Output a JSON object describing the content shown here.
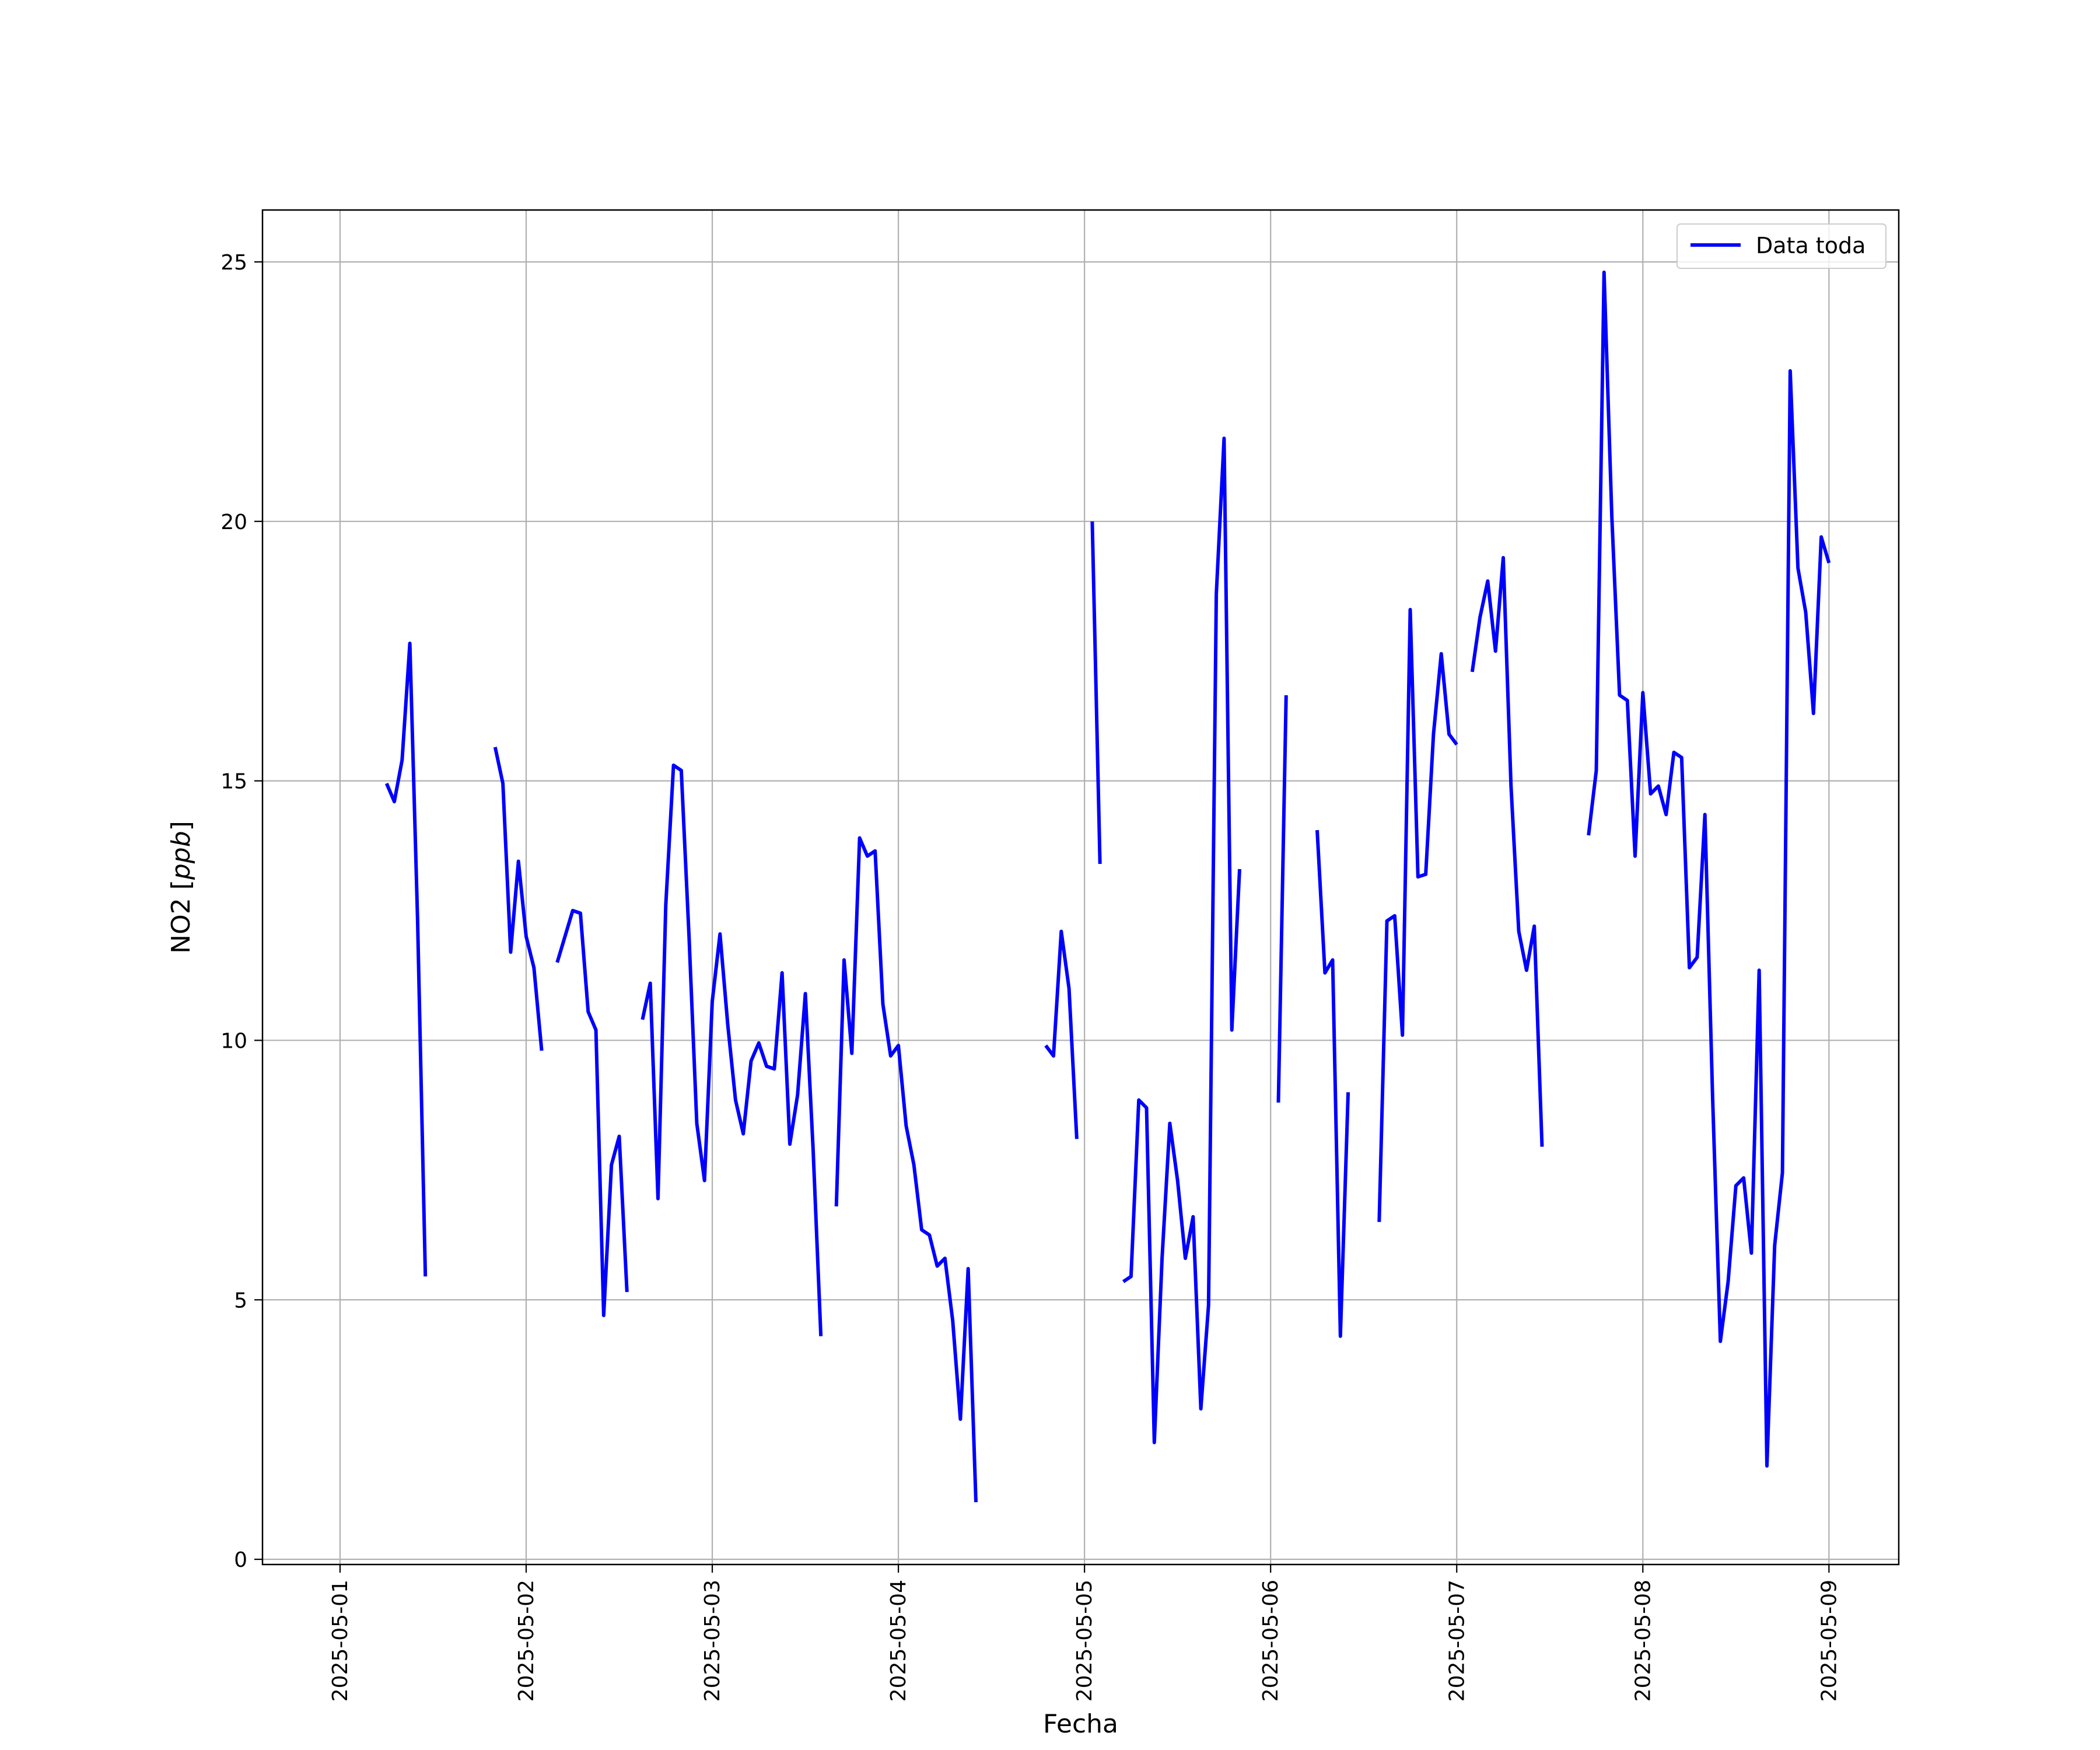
{
  "chart_data": {
    "type": "line",
    "xlabel": "Fecha",
    "ylabel_prefix": "NO2 [",
    "ylabel_unit": "ppb",
    "ylabel_suffix": "]",
    "x_ticks": [
      "2025-05-01",
      "2025-05-02",
      "2025-05-03",
      "2025-05-04",
      "2025-05-05",
      "2025-05-06",
      "2025-05-07",
      "2025-05-08",
      "2025-05-09"
    ],
    "y_ticks": [
      "0",
      "5",
      "10",
      "15",
      "20",
      "25"
    ],
    "xlim": [
      "2025-04-30 14:00",
      "2025-05-09 09:00"
    ],
    "ylim": [
      -0.1,
      26
    ],
    "grid": true,
    "legend": "top-right",
    "colors": {
      "line": "#0000ff",
      "grid": "#b0b0b0"
    },
    "series": [
      {
        "name": "Data toda",
        "segments": [
          [
            [
              "2025-05-01 06:00",
              14.95
            ],
            [
              "2025-05-01 07:00",
              14.6
            ],
            [
              "2025-05-01 08:00",
              15.4
            ],
            [
              "2025-05-01 09:00",
              17.65
            ],
            [
              "2025-05-01 10:00",
              12.3
            ],
            [
              "2025-05-01 11:00",
              5.45
            ]
          ],
          [
            [
              "2025-05-01 20:00",
              15.65
            ],
            [
              "2025-05-01 21:00",
              14.95
            ],
            [
              "2025-05-01 22:00",
              11.7
            ],
            [
              "2025-05-01 23:00",
              13.45
            ],
            [
              "2025-05-02 00:00",
              12.0
            ],
            [
              "2025-05-02 01:00",
              11.4
            ],
            [
              "2025-05-02 02:00",
              9.8
            ]
          ],
          [
            [
              "2025-05-02 04:00",
              11.5
            ],
            [
              "2025-05-02 05:00",
              12.0
            ],
            [
              "2025-05-02 06:00",
              12.5
            ],
            [
              "2025-05-02 07:00",
              12.45
            ],
            [
              "2025-05-02 08:00",
              10.55
            ],
            [
              "2025-05-02 09:00",
              10.2
            ],
            [
              "2025-05-02 10:00",
              4.7
            ],
            [
              "2025-05-02 11:00",
              7.6
            ],
            [
              "2025-05-02 12:00",
              8.15
            ],
            [
              "2025-05-02 13:00",
              5.15
            ]
          ],
          [
            [
              "2025-05-02 15:00",
              10.4
            ],
            [
              "2025-05-02 16:00",
              11.1
            ],
            [
              "2025-05-02 17:00",
              6.95
            ],
            [
              "2025-05-02 18:00",
              12.6
            ],
            [
              "2025-05-02 19:00",
              15.3
            ],
            [
              "2025-05-02 20:00",
              15.2
            ],
            [
              "2025-05-02 21:00",
              12.0
            ],
            [
              "2025-05-02 22:00",
              8.4
            ],
            [
              "2025-05-02 23:00",
              7.3
            ],
            [
              "2025-05-03 00:00",
              10.75
            ],
            [
              "2025-05-03 01:00",
              12.05
            ],
            [
              "2025-05-03 02:00",
              10.3
            ],
            [
              "2025-05-03 03:00",
              8.85
            ],
            [
              "2025-05-03 04:00",
              8.2
            ],
            [
              "2025-05-03 05:00",
              9.6
            ],
            [
              "2025-05-03 06:00",
              9.95
            ],
            [
              "2025-05-03 07:00",
              9.5
            ],
            [
              "2025-05-03 08:00",
              9.45
            ],
            [
              "2025-05-03 09:00",
              11.3
            ],
            [
              "2025-05-03 10:00",
              8.0
            ],
            [
              "2025-05-03 11:00",
              8.95
            ],
            [
              "2025-05-03 12:00",
              10.9
            ],
            [
              "2025-05-03 13:00",
              7.9
            ],
            [
              "2025-05-03 14:00",
              4.3
            ]
          ],
          [
            [
              "2025-05-03 16:00",
              6.8
            ],
            [
              "2025-05-03 17:00",
              11.55
            ],
            [
              "2025-05-03 18:00",
              9.75
            ],
            [
              "2025-05-03 19:00",
              13.9
            ],
            [
              "2025-05-03 20:00",
              13.55
            ],
            [
              "2025-05-03 21:00",
              13.65
            ],
            [
              "2025-05-03 22:00",
              10.7
            ],
            [
              "2025-05-03 23:00",
              9.7
            ],
            [
              "2025-05-04 00:00",
              9.9
            ],
            [
              "2025-05-04 01:00",
              8.35
            ],
            [
              "2025-05-04 02:00",
              7.6
            ],
            [
              "2025-05-04 03:00",
              6.35
            ],
            [
              "2025-05-04 04:00",
              6.25
            ],
            [
              "2025-05-04 05:00",
              5.65
            ],
            [
              "2025-05-04 06:00",
              5.8
            ],
            [
              "2025-05-04 07:00",
              4.6
            ],
            [
              "2025-05-04 08:00",
              2.7
            ],
            [
              "2025-05-04 09:00",
              5.6
            ],
            [
              "2025-05-04 10:00",
              1.1
            ]
          ],
          [
            [
              "2025-05-04 19:00",
              9.9
            ],
            [
              "2025-05-04 20:00",
              9.7
            ],
            [
              "2025-05-04 21:00",
              12.1
            ],
            [
              "2025-05-04 22:00",
              11.0
            ],
            [
              "2025-05-04 23:00",
              8.1
            ]
          ],
          [
            [
              "2025-05-05 01:00",
              20.0
            ],
            [
              "2025-05-05 02:00",
              13.4
            ]
          ],
          [
            [
              "2025-05-05 05:00",
              5.35
            ],
            [
              "2025-05-05 06:00",
              5.45
            ],
            [
              "2025-05-05 07:00",
              8.85
            ],
            [
              "2025-05-05 08:00",
              8.7
            ],
            [
              "2025-05-05 09:00",
              2.25
            ],
            [
              "2025-05-05 10:00",
              5.8
            ],
            [
              "2025-05-05 11:00",
              8.4
            ],
            [
              "2025-05-05 12:00",
              7.3
            ],
            [
              "2025-05-05 13:00",
              5.8
            ],
            [
              "2025-05-05 14:00",
              6.6
            ],
            [
              "2025-05-05 15:00",
              2.9
            ],
            [
              "2025-05-05 16:00",
              4.9
            ],
            [
              "2025-05-05 17:00",
              18.6
            ],
            [
              "2025-05-05 18:00",
              21.6
            ],
            [
              "2025-05-05 19:00",
              10.2
            ],
            [
              "2025-05-05 20:00",
              13.3
            ]
          ],
          [
            [
              "2025-05-06 01:00",
              8.8
            ],
            [
              "2025-05-06 02:00",
              16.65
            ]
          ],
          [
            [
              "2025-05-06 06:00",
              14.05
            ],
            [
              "2025-05-06 07:00",
              11.3
            ],
            [
              "2025-05-06 08:00",
              11.55
            ],
            [
              "2025-05-06 09:00",
              4.3
            ],
            [
              "2025-05-06 10:00",
              9.0
            ]
          ],
          [
            [
              "2025-05-06 14:00",
              6.5
            ],
            [
              "2025-05-06 15:00",
              12.3
            ],
            [
              "2025-05-06 16:00",
              12.4
            ],
            [
              "2025-05-06 17:00",
              10.1
            ],
            [
              "2025-05-06 18:00",
              18.3
            ],
            [
              "2025-05-06 19:00",
              13.15
            ],
            [
              "2025-05-06 20:00",
              13.2
            ],
            [
              "2025-05-06 21:00",
              15.9
            ],
            [
              "2025-05-06 22:00",
              17.45
            ],
            [
              "2025-05-06 23:00",
              15.9
            ],
            [
              "2025-05-07 00:00",
              15.7
            ]
          ],
          [
            [
              "2025-05-07 02:00",
              17.1
            ],
            [
              "2025-05-07 03:00",
              18.15
            ],
            [
              "2025-05-07 04:00",
              18.85
            ],
            [
              "2025-05-07 05:00",
              17.5
            ],
            [
              "2025-05-07 06:00",
              19.3
            ],
            [
              "2025-05-07 07:00",
              14.9
            ],
            [
              "2025-05-07 08:00",
              12.1
            ],
            [
              "2025-05-07 09:00",
              11.35
            ],
            [
              "2025-05-07 10:00",
              12.2
            ],
            [
              "2025-05-07 11:00",
              7.95
            ]
          ],
          [
            [
              "2025-05-07 17:00",
              13.95
            ],
            [
              "2025-05-07 18:00",
              15.2
            ],
            [
              "2025-05-07 19:00",
              24.8
            ],
            [
              "2025-05-07 20:00",
              20.1
            ],
            [
              "2025-05-07 21:00",
              16.65
            ],
            [
              "2025-05-07 22:00",
              16.55
            ],
            [
              "2025-05-07 23:00",
              13.55
            ],
            [
              "2025-05-08 00:00",
              16.7
            ],
            [
              "2025-05-08 01:00",
              14.75
            ],
            [
              "2025-05-08 02:00",
              14.9
            ],
            [
              "2025-05-08 03:00",
              14.35
            ],
            [
              "2025-05-08 04:00",
              15.55
            ],
            [
              "2025-05-08 05:00",
              15.45
            ],
            [
              "2025-05-08 06:00",
              11.4
            ],
            [
              "2025-05-08 07:00",
              11.6
            ],
            [
              "2025-05-08 08:00",
              14.35
            ],
            [
              "2025-05-08 09:00",
              8.9
            ],
            [
              "2025-05-08 10:00",
              4.2
            ],
            [
              "2025-05-08 11:00",
              5.35
            ],
            [
              "2025-05-08 12:00",
              7.2
            ],
            [
              "2025-05-08 13:00",
              7.35
            ],
            [
              "2025-05-08 14:00",
              5.9
            ],
            [
              "2025-05-08 15:00",
              11.35
            ],
            [
              "2025-05-08 16:00",
              1.8
            ],
            [
              "2025-05-08 17:00",
              6.05
            ],
            [
              "2025-05-08 18:00",
              7.45
            ],
            [
              "2025-05-08 19:00",
              22.9
            ],
            [
              "2025-05-08 20:00",
              19.1
            ],
            [
              "2025-05-08 21:00",
              18.25
            ],
            [
              "2025-05-08 22:00",
              16.3
            ],
            [
              "2025-05-08 23:00",
              19.7
            ],
            [
              "2025-05-09 00:00",
              19.2
            ]
          ]
        ]
      }
    ]
  }
}
